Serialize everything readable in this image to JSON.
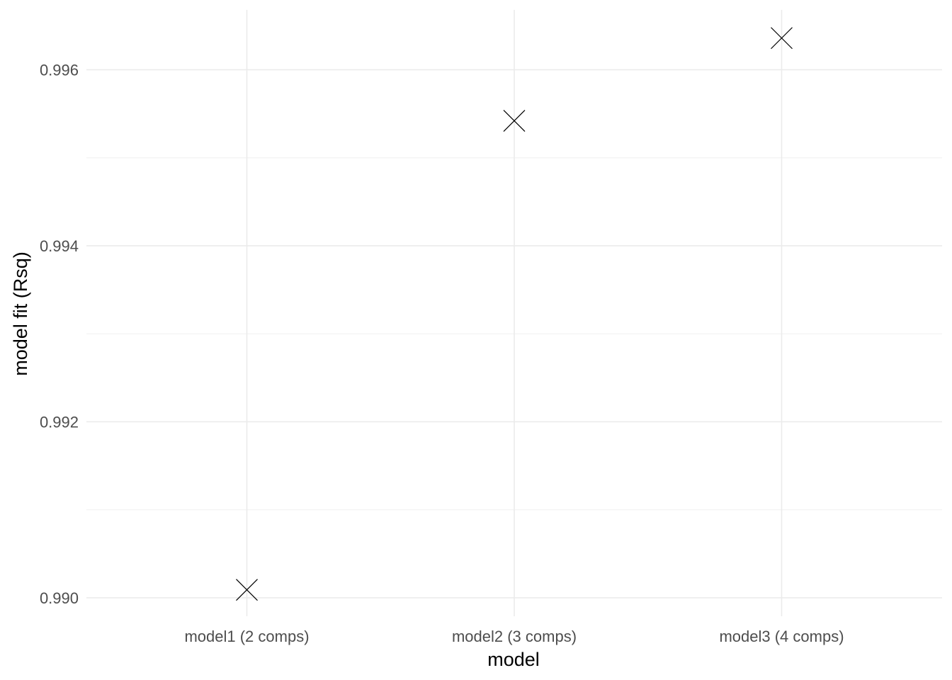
{
  "chart_data": {
    "type": "scatter",
    "categories": [
      "model1 (2 comps)",
      "model2 (3 comps)",
      "model3 (4 comps)"
    ],
    "values": [
      0.99009,
      0.99542,
      0.99636
    ],
    "xlabel": "model",
    "ylabel": "model fit (Rsq)",
    "ylim": [
      0.98979,
      0.99668
    ],
    "yticks": [
      0.99,
      0.992,
      0.994,
      0.996
    ],
    "ytick_labels": [
      "0.990",
      "0.992",
      "0.994",
      "0.996"
    ],
    "yticks_minor": [
      0.991,
      0.993,
      0.995
    ],
    "marker": "x",
    "grid": true,
    "legend": "none",
    "colors": {
      "marker": "#000000",
      "grid": "#ebebeb",
      "tick_label": "#4d4d4d",
      "axis_title": "#000000",
      "background": "#ffffff"
    }
  }
}
